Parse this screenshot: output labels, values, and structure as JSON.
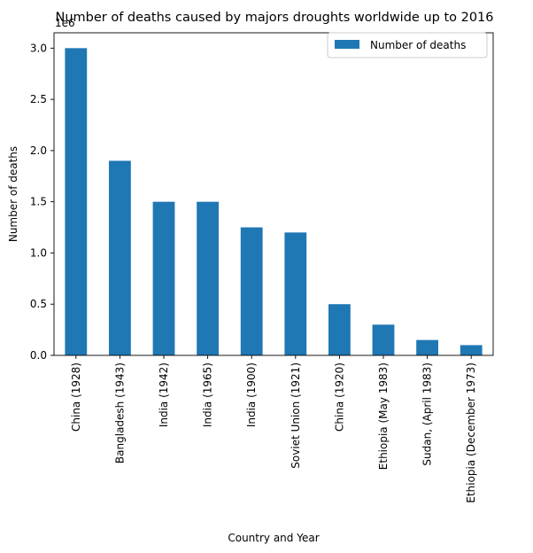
{
  "chart_data": {
    "type": "bar",
    "title": "Number of deaths caused by majors droughts worldwide up to 2016",
    "xlabel": "Country and Year",
    "ylabel": "Number of deaths",
    "offset_label": "1e6",
    "categories": [
      "China (1928)",
      "Bangladesh (1943)",
      "India (1942)",
      "India (1965)",
      "India (1900)",
      "Soviet Union (1921)",
      "China (1920)",
      "Ethiopia (May 1983)",
      "Sudan, (April 1983)",
      "Ethiopia (December 1973)"
    ],
    "series": [
      {
        "name": "Number of deaths",
        "values": [
          3000000,
          1900000,
          1500000,
          1500000,
          1250000,
          1200000,
          500000,
          300000,
          150000,
          100000
        ]
      }
    ],
    "ylim": [
      0,
      3150000
    ],
    "yticks": [
      0,
      500000,
      1000000,
      1500000,
      2000000,
      2500000,
      3000000
    ],
    "ytick_labels": [
      "0.0",
      "0.5",
      "1.0",
      "1.5",
      "2.0",
      "2.5",
      "3.0"
    ],
    "grid": false,
    "legend_position": "top-right",
    "bar_color": "#1f77b4"
  }
}
